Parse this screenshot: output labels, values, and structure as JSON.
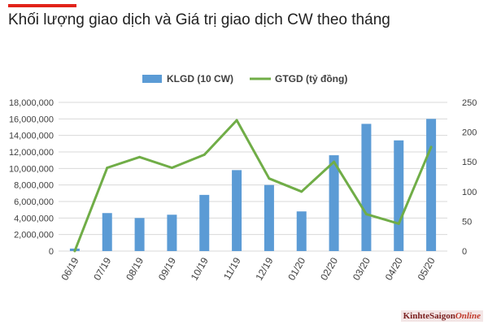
{
  "header": {
    "title": "Khối lượng giao dịch và Giá trị giao dịch CW theo tháng",
    "accent_color": "#e2231a"
  },
  "watermark": {
    "brand": "KinhteSaigon",
    "suffix": "Online"
  },
  "chart_data": {
    "type": "bar",
    "categories": [
      "06/19",
      "07/19",
      "08/19",
      "09/19",
      "10/19",
      "11/19",
      "12/19",
      "01/20",
      "02/20",
      "03/20",
      "04/20",
      "05/20"
    ],
    "series": [
      {
        "name": "KLGD (10 CW)",
        "type": "bar",
        "axis": "left",
        "color": "#5b9bd5",
        "values": [
          300000,
          4600000,
          4000000,
          4400000,
          6800000,
          9800000,
          8000000,
          4800000,
          11600000,
          15400000,
          13400000,
          16000000
        ]
      },
      {
        "name": "GTGD (tỷ đồng)",
        "type": "line",
        "axis": "right",
        "color": "#70ad47",
        "values": [
          0,
          140,
          158,
          140,
          162,
          220,
          122,
          100,
          150,
          62,
          46,
          175
        ]
      }
    ],
    "y_left": {
      "ylim": [
        0,
        18000000
      ],
      "ticks": [
        "0",
        "2,000,000",
        "4,000,000",
        "6,000,000",
        "8,000,000",
        "10,000,000",
        "12,000,000",
        "14,000,000",
        "16,000,000",
        "18,000,000"
      ]
    },
    "y_right": {
      "ylim": [
        0,
        250
      ],
      "ticks": [
        "0",
        "50",
        "100",
        "150",
        "200",
        "250"
      ]
    },
    "grid": true,
    "legend": "top-center"
  }
}
